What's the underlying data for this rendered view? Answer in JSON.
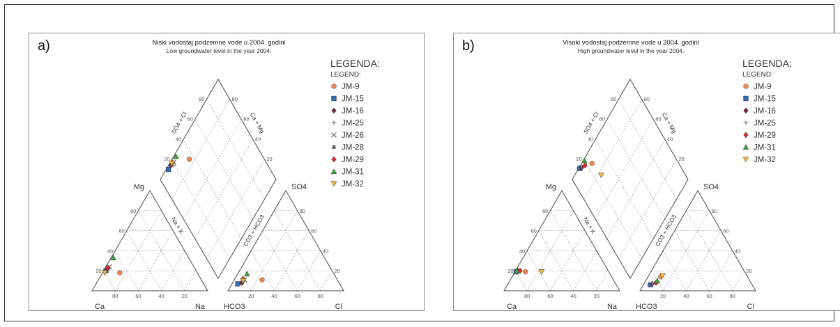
{
  "chart_data": [
    {
      "type": "scatter",
      "subtype": "piper-diagram",
      "panel_label": "a)",
      "title": "Niski vodostaj podzemne vode u 2004. godini",
      "subtitle": "Low groundwater level in the year 2004.",
      "legend_title": "LEGENDA:",
      "legend_subtitle": "LEGEND:",
      "legend_position": "right",
      "cation_labels": {
        "top": "Mg",
        "left": "Ca",
        "right": "Na",
        "side": "Na + K"
      },
      "anion_labels": {
        "top": "SO4",
        "left": "HCO3",
        "right": "Cl",
        "side": "CO3 + HCO3"
      },
      "diamond_labels": {
        "upper_left": "SO4 + Cl",
        "upper_right": "Ca + Mg"
      },
      "ticks": [
        "20",
        "40",
        "60",
        "80"
      ],
      "series": [
        {
          "name": "JM-9",
          "marker": "circle",
          "color": "#f08a50",
          "cation": {
            "ca": 67,
            "mg": 18,
            "na": 15
          },
          "anion": {
            "hco3": 65,
            "so4": 11,
            "cl": 24
          },
          "diamond": {
            "so4cl": 35,
            "camg": 85
          }
        },
        {
          "name": "JM-15",
          "marker": "square",
          "color": "#2f6db5",
          "cation": {
            "ca": 78,
            "mg": 20,
            "na": 2
          },
          "anion": {
            "hco3": 88,
            "so4": 7,
            "cl": 5
          },
          "diamond": {
            "so4cl": 12,
            "camg": 98
          }
        },
        {
          "name": "JM-16",
          "marker": "diamond",
          "color": "#7a2550",
          "cation": {
            "ca": 76,
            "mg": 22,
            "na": 2
          },
          "anion": {
            "hco3": 84,
            "so4": 8,
            "cl": 8
          },
          "diamond": {
            "so4cl": 16,
            "camg": 98
          }
        },
        {
          "name": "JM-25",
          "marker": "plus",
          "color": "#8a8a8a",
          "cation": {
            "ca": 74,
            "mg": 22,
            "na": 4
          },
          "anion": {
            "hco3": 82,
            "so4": 10,
            "cl": 8
          },
          "diamond": {
            "so4cl": 18,
            "camg": 96
          }
        },
        {
          "name": "JM-26",
          "marker": "cross",
          "color": "#6a6a6a",
          "cation": {
            "ca": 73,
            "mg": 24,
            "na": 3
          },
          "anion": {
            "hco3": 80,
            "so4": 11,
            "cl": 9
          },
          "diamond": {
            "so4cl": 20,
            "camg": 97
          }
        },
        {
          "name": "JM-28",
          "marker": "star",
          "color": "#444444",
          "cation": {
            "ca": 75,
            "mg": 23,
            "na": 2
          },
          "anion": {
            "hco3": 83,
            "so4": 9,
            "cl": 8
          },
          "diamond": {
            "so4cl": 17,
            "camg": 98
          }
        },
        {
          "name": "JM-29",
          "marker": "diamond",
          "color": "#d83030",
          "cation": {
            "ca": 75,
            "mg": 23,
            "na": 2
          },
          "anion": {
            "hco3": 81,
            "so4": 12,
            "cl": 7
          },
          "diamond": {
            "so4cl": 19,
            "camg": 98
          }
        },
        {
          "name": "JM-31",
          "marker": "triangle",
          "color": "#40a040",
          "cation": {
            "ca": 65,
            "mg": 33,
            "na": 2
          },
          "anion": {
            "hco3": 75,
            "so4": 17,
            "cl": 8
          },
          "diamond": {
            "so4cl": 25,
            "camg": 98
          }
        },
        {
          "name": "JM-32",
          "marker": "triangle-down",
          "color": "#f0b840",
          "cation": {
            "ca": 80,
            "mg": 18,
            "na": 2
          },
          "anion": {
            "hco3": 82,
            "so4": 10,
            "cl": 8
          },
          "diamond": {
            "so4cl": 18,
            "camg": 98
          }
        }
      ]
    },
    {
      "type": "scatter",
      "subtype": "piper-diagram",
      "panel_label": "b)",
      "title": "Visoki vodostaj podzemne vode u 2004. godini",
      "subtitle": "High groundwater level in the year 2004.",
      "legend_title": "LEGENDA:",
      "legend_subtitle": "LEGEND:",
      "legend_position": "right",
      "cation_labels": {
        "top": "Mg",
        "left": "Ca",
        "right": "Na",
        "side": "Na + K"
      },
      "anion_labels": {
        "top": "SO4",
        "left": "HCO3",
        "right": "Cl",
        "side": "CO3 + HCO3"
      },
      "diamond_labels": {
        "upper_left": "SO4 + Cl",
        "upper_right": "Ca + Mg"
      },
      "ticks": [
        "20",
        "40",
        "60",
        "80"
      ],
      "series": [
        {
          "name": "JM-9",
          "marker": "circle",
          "color": "#f08a50",
          "cation": {
            "ca": 72,
            "mg": 19,
            "na": 9
          },
          "anion": {
            "hco3": 75,
            "so4": 14,
            "cl": 11
          },
          "diamond": {
            "so4cl": 25,
            "camg": 91
          }
        },
        {
          "name": "JM-15",
          "marker": "square",
          "color": "#2f6db5",
          "cation": {
            "ca": 80,
            "mg": 19,
            "na": 1
          },
          "anion": {
            "hco3": 88,
            "so4": 6,
            "cl": 6
          },
          "diamond": {
            "so4cl": 12,
            "camg": 99
          }
        },
        {
          "name": "JM-16",
          "marker": "diamond",
          "color": "#7a2550",
          "cation": {
            "ca": 78,
            "mg": 20,
            "na": 2
          },
          "anion": {
            "hco3": 86,
            "so4": 7,
            "cl": 7
          },
          "diamond": {
            "so4cl": 14,
            "camg": 98
          }
        },
        {
          "name": "JM-25",
          "marker": "plus",
          "color": "#8a8a8a",
          "cation": {
            "ca": 79,
            "mg": 20,
            "na": 1
          },
          "anion": {
            "hco3": 85,
            "so4": 8,
            "cl": 7
          },
          "diamond": {
            "so4cl": 15,
            "camg": 99
          }
        },
        {
          "name": "JM-29",
          "marker": "diamond",
          "color": "#d83030",
          "cation": {
            "ca": 76,
            "mg": 20,
            "na": 4
          },
          "anion": {
            "hco3": 82,
            "so4": 8,
            "cl": 10
          },
          "diamond": {
            "so4cl": 18,
            "camg": 96
          }
        },
        {
          "name": "JM-31",
          "marker": "triangle",
          "color": "#40a040",
          "cation": {
            "ca": 79,
            "mg": 20,
            "na": 1
          },
          "anion": {
            "hco3": 80,
            "so4": 10,
            "cl": 10
          },
          "diamond": {
            "so4cl": 20,
            "camg": 99
          }
        },
        {
          "name": "JM-32",
          "marker": "triangle-down",
          "color": "#f0b840",
          "cation": {
            "ca": 58,
            "mg": 19,
            "na": 23
          },
          "anion": {
            "hco3": 73,
            "so4": 15,
            "cl": 12
          },
          "diamond": {
            "so4cl": 27,
            "camg": 77
          }
        }
      ]
    }
  ]
}
